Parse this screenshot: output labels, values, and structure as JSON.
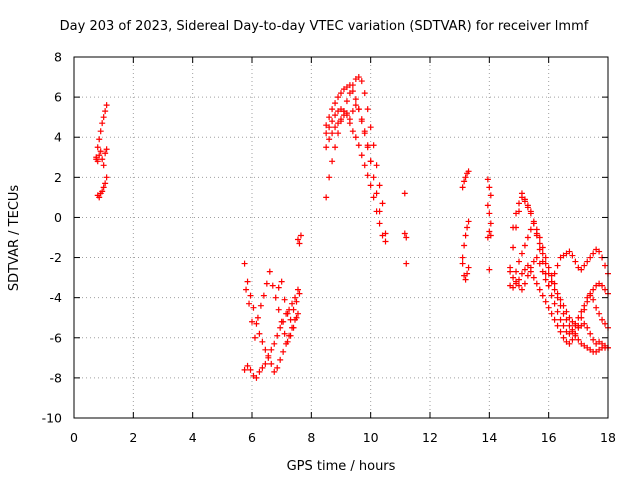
{
  "chart_data": {
    "type": "scatter",
    "title": "Day 203 of 2023, Sidereal Day-to-day VTEC variation (SDTVAR) for receiver lmmf",
    "xlabel": "GPS time / hours",
    "ylabel": "SDTVAR / TECUs",
    "xlim": [
      0,
      18
    ],
    "ylim": [
      -10,
      8
    ],
    "xticks": [
      0,
      2,
      4,
      6,
      8,
      10,
      12,
      14,
      16,
      18
    ],
    "yticks": [
      -10,
      -8,
      -6,
      -4,
      -2,
      0,
      2,
      4,
      6,
      8
    ],
    "grid": true,
    "marker": "+",
    "color": "#ff0000",
    "series": [
      {
        "name": "segment-1",
        "x": [
          0.75,
          0.8,
          0.85,
          0.9,
          0.95,
          1.0,
          1.05,
          1.1,
          0.8,
          0.85,
          0.9,
          0.95,
          1.0,
          1.05,
          1.1,
          0.75,
          0.8,
          0.85,
          0.9,
          0.95,
          1.0,
          1.05,
          1.1
        ],
        "y": [
          3.0,
          3.5,
          3.9,
          4.3,
          4.7,
          5.0,
          5.3,
          5.6,
          1.1,
          1.0,
          1.2,
          1.3,
          1.5,
          1.7,
          2.0,
          2.9,
          2.8,
          3.1,
          3.3,
          2.9,
          2.6,
          3.2,
          3.4
        ]
      },
      {
        "name": "segment-2",
        "x": [
          5.75,
          5.85,
          5.95,
          6.05,
          6.15,
          6.25,
          6.35,
          6.45,
          6.55,
          6.65,
          6.75,
          6.85,
          6.95,
          7.05,
          7.15,
          7.25,
          7.35,
          7.45,
          7.55,
          5.75,
          5.85,
          5.95,
          6.05,
          6.15,
          6.25,
          6.35,
          6.45,
          6.55,
          6.65,
          6.75,
          6.85,
          6.95,
          7.05,
          7.15,
          7.25,
          7.35,
          7.45,
          7.55,
          5.8,
          5.9,
          6.0,
          6.1,
          6.2,
          6.3,
          6.4,
          6.5,
          6.6,
          6.7,
          6.8,
          6.9,
          7.0,
          7.1,
          7.2,
          7.3,
          7.4,
          7.5,
          6.9,
          7.0,
          7.1,
          7.2,
          7.3,
          7.4,
          7.5,
          7.6,
          7.6,
          7.65,
          7.55
        ],
        "y": [
          -2.3,
          -3.2,
          -3.9,
          -4.5,
          -5.3,
          -5.8,
          -6.2,
          -6.6,
          -6.9,
          -7.3,
          -7.7,
          -7.5,
          -7.1,
          -6.7,
          -6.3,
          -5.9,
          -5.5,
          -5.1,
          -4.8,
          -7.6,
          -7.4,
          -7.6,
          -7.9,
          -8.0,
          -7.7,
          -7.5,
          -7.3,
          -7.0,
          -6.6,
          -6.3,
          -5.9,
          -5.5,
          -5.2,
          -4.8,
          -4.6,
          -4.3,
          -4.0,
          -3.6,
          -3.6,
          -4.3,
          -5.2,
          -6.0,
          -5.0,
          -4.4,
          -3.9,
          -3.3,
          -2.7,
          -3.4,
          -4.0,
          -4.6,
          -5.2,
          -5.8,
          -6.2,
          -5.9,
          -5.5,
          -5.0,
          -3.5,
          -3.2,
          -4.1,
          -4.8,
          -5.1,
          -4.6,
          -4.2,
          -3.8,
          -1.3,
          -0.9,
          -1.1
        ]
      },
      {
        "name": "segment-3",
        "x": [
          8.5,
          8.6,
          8.7,
          8.8,
          8.9,
          9.0,
          9.1,
          9.2,
          9.3,
          9.4,
          9.5,
          9.6,
          9.7,
          9.8,
          9.9,
          10.0,
          10.1,
          10.2,
          10.3,
          10.4,
          10.5,
          8.5,
          8.6,
          8.7,
          8.8,
          8.9,
          9.0,
          9.1,
          9.2,
          9.3,
          9.4,
          9.5,
          9.6,
          9.7,
          9.8,
          9.9,
          10.0,
          10.1,
          10.2,
          10.3,
          8.5,
          8.6,
          8.7,
          8.8,
          8.9,
          9.0,
          9.1,
          9.2,
          9.3,
          9.4,
          9.5,
          9.6,
          9.7,
          9.8,
          9.9,
          10.0,
          8.5,
          8.6,
          8.7,
          8.8,
          8.9,
          9.0,
          9.1,
          9.2,
          9.3,
          9.4,
          9.5,
          9.6,
          9.7,
          9.8,
          9.9,
          10.0,
          10.1,
          10.2,
          10.3,
          10.4,
          10.5
        ],
        "y": [
          1.0,
          2.0,
          2.8,
          3.5,
          4.2,
          4.8,
          5.3,
          5.8,
          6.2,
          6.6,
          6.9,
          7.0,
          6.8,
          6.2,
          5.4,
          4.5,
          3.6,
          2.6,
          1.6,
          0.7,
          -0.8,
          4.6,
          5.0,
          5.4,
          5.7,
          6.0,
          6.2,
          6.4,
          6.5,
          6.6,
          6.3,
          5.9,
          5.4,
          4.8,
          4.2,
          3.5,
          2.8,
          2.0,
          1.2,
          0.3,
          4.2,
          4.5,
          4.8,
          5.1,
          5.3,
          5.4,
          5.3,
          5.1,
          4.9,
          5.3,
          5.6,
          5.4,
          4.9,
          4.3,
          3.6,
          2.8,
          3.5,
          3.9,
          4.2,
          4.5,
          4.7,
          4.9,
          5.1,
          5.2,
          4.7,
          4.3,
          4.0,
          3.6,
          3.1,
          2.6,
          2.1,
          1.6,
          1.0,
          0.3,
          -0.3,
          -0.9,
          -1.2
        ]
      },
      {
        "name": "segment-4",
        "x": [
          11.15,
          11.2,
          11.15,
          11.2
        ],
        "y": [
          1.2,
          -1.0,
          -0.8,
          -2.3
        ]
      },
      {
        "name": "segment-5",
        "x": [
          13.1,
          13.15,
          13.2,
          13.25,
          13.3,
          13.1,
          13.15,
          13.2,
          13.25,
          13.3,
          13.1,
          13.15,
          13.2,
          13.25,
          13.3
        ],
        "y": [
          1.5,
          1.8,
          2.0,
          2.2,
          2.3,
          -2.0,
          -1.4,
          -0.9,
          -0.5,
          -0.2,
          -2.3,
          -2.9,
          -3.1,
          -2.8,
          -2.5
        ]
      },
      {
        "name": "segment-6",
        "x": [
          13.95,
          14.0,
          14.05,
          13.95,
          14.0,
          14.05,
          13.95,
          14.0,
          14.05,
          14.0
        ],
        "y": [
          1.9,
          1.5,
          1.1,
          0.6,
          0.2,
          -0.3,
          -1.0,
          -0.7,
          -0.9,
          -2.6
        ]
      },
      {
        "name": "segment-7",
        "x": [
          14.7,
          14.8,
          14.9,
          15.0,
          15.1,
          15.2,
          15.3,
          15.4,
          15.5,
          15.6,
          15.7,
          15.8,
          15.9,
          16.0,
          16.1,
          16.2,
          16.3,
          16.4,
          16.5,
          16.6,
          16.7,
          16.8,
          16.9,
          17.0,
          17.1,
          17.2,
          17.3,
          17.4,
          17.5,
          17.6,
          17.7,
          17.8,
          17.9,
          18.0,
          14.8,
          14.9,
          15.0,
          15.1,
          15.2,
          15.3,
          15.4,
          15.5,
          15.6,
          15.7,
          15.8,
          15.9,
          16.0,
          16.1,
          16.2,
          16.3,
          16.4,
          16.5,
          16.6,
          16.7,
          16.8,
          16.9,
          17.0,
          17.1,
          17.2,
          17.3,
          17.4,
          17.5,
          17.6,
          17.7,
          17.8,
          17.9,
          18.0,
          14.9,
          15.0,
          15.1,
          15.2,
          15.3,
          15.4,
          15.5,
          15.6,
          15.7,
          15.8,
          15.9,
          16.0,
          16.1,
          16.2,
          16.3,
          16.4,
          16.5,
          16.6,
          16.7,
          16.8,
          16.9,
          17.0,
          17.1,
          17.2,
          17.3,
          17.4,
          17.5,
          17.6,
          17.7,
          17.8,
          17.9,
          18.0,
          14.7,
          14.8,
          14.9,
          15.0,
          15.1,
          15.2,
          15.3,
          15.4,
          15.5,
          15.6,
          15.7,
          15.8,
          15.9,
          16.0,
          16.1,
          16.2,
          16.3,
          16.4,
          16.5,
          16.6,
          16.7,
          16.8,
          16.9,
          17.0,
          17.1,
          17.2,
          17.3,
          17.4,
          17.5,
          17.6,
          17.7,
          17.8,
          17.9,
          18.0,
          14.7,
          14.8,
          14.9,
          15.0,
          15.1,
          15.2,
          15.3,
          15.4,
          15.5,
          15.6,
          15.7,
          15.8,
          15.9,
          16.0,
          16.1,
          16.2,
          16.3,
          16.4,
          16.5,
          16.6,
          16.7,
          16.8,
          16.9,
          17.0,
          17.1,
          17.2,
          17.3,
          17.4,
          17.5,
          17.6,
          17.7,
          17.8,
          17.9,
          18.0
        ],
        "y": [
          -2.5,
          -1.5,
          -0.5,
          0.3,
          1.0,
          0.9,
          0.6,
          0.3,
          -0.2,
          -0.8,
          -1.3,
          -1.8,
          -2.3,
          -2.8,
          -3.2,
          -3.6,
          -4.0,
          -4.4,
          -4.8,
          -5.1,
          -5.4,
          -5.7,
          -5.9,
          -6.1,
          -6.3,
          -6.4,
          -6.5,
          -6.6,
          -6.7,
          -6.7,
          -6.6,
          -6.5,
          -6.5,
          -6.5,
          -0.5,
          0.2,
          0.7,
          1.2,
          0.8,
          0.5,
          0.2,
          -0.3,
          -0.9,
          -1.6,
          -2.2,
          -2.8,
          -3.4,
          -3.9,
          -4.3,
          -4.7,
          -5.1,
          -5.4,
          -5.7,
          -5.8,
          -5.6,
          -5.3,
          -5.0,
          -4.7,
          -4.4,
          -4.0,
          -3.8,
          -4.1,
          -4.5,
          -4.8,
          -5.1,
          -5.3,
          -5.5,
          -2.7,
          -2.2,
          -1.8,
          -1.4,
          -1.0,
          -0.6,
          -0.3,
          -0.6,
          -1.0,
          -1.5,
          -2.0,
          -2.5,
          -2.9,
          -3.3,
          -3.8,
          -4.1,
          -4.4,
          -4.7,
          -5.0,
          -5.2,
          -5.4,
          -5.5,
          -5.4,
          -5.3,
          -5.5,
          -5.8,
          -6.1,
          -6.3,
          -6.2,
          -6.3,
          -6.4,
          -6.5,
          -3.4,
          -3.5,
          -3.3,
          -3.1,
          -2.8,
          -2.6,
          -2.4,
          -2.7,
          -3.0,
          -3.3,
          -3.6,
          -3.9,
          -4.2,
          -4.5,
          -4.8,
          -5.1,
          -5.4,
          -5.7,
          -6.0,
          -6.2,
          -6.3,
          -6.1,
          -5.8,
          -5.4,
          -5.0,
          -4.6,
          -4.2,
          -3.9,
          -3.6,
          -3.4,
          -3.3,
          -3.4,
          -3.6,
          -3.8,
          -2.7,
          -3.0,
          -3.2,
          -3.4,
          -3.6,
          -3.3,
          -2.9,
          -2.5,
          -2.2,
          -2.0,
          -2.3,
          -2.7,
          -3.1,
          -3.4,
          -3.2,
          -2.8,
          -2.4,
          -2.0,
          -1.9,
          -1.8,
          -1.7,
          -1.9,
          -2.2,
          -2.5,
          -2.6,
          -2.4,
          -2.2,
          -2.0,
          -1.8,
          -1.6,
          -1.7,
          -2.0,
          -2.4,
          -2.8
        ]
      }
    ]
  }
}
